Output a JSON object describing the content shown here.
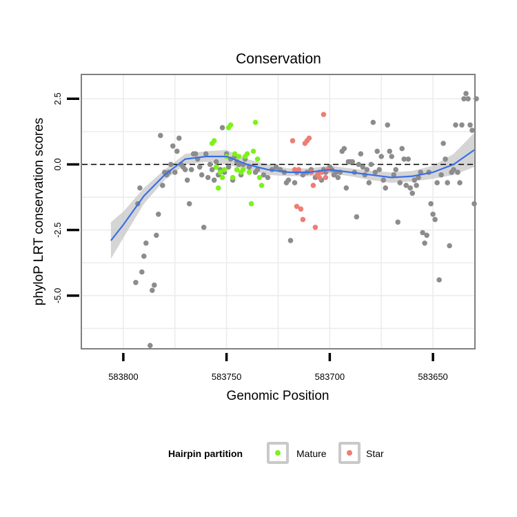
{
  "chart_data": {
    "type": "scatter",
    "title": "Conservation",
    "xlabel": "Genomic Position",
    "ylabel": "phyloP LRT conservation scores",
    "x_reversed": true,
    "xlim": [
      583820,
      583630
    ],
    "ylim": [
      -7.0,
      3.4
    ],
    "x_ticks": [
      583800,
      583750,
      583700,
      583650
    ],
    "y_ticks": [
      2.5,
      0.0,
      -2.5,
      -5.0
    ],
    "y_tick_labels": [
      "2.5",
      "0.0",
      "-2.5",
      "-5.0"
    ],
    "reference_line": {
      "y": 0,
      "style": "dashed"
    },
    "grid": true,
    "legend": {
      "title": "Hairpin partition",
      "placement": "bottom",
      "entries": [
        {
          "label": "Mature",
          "color": "#7cf21a"
        },
        {
          "label": "Star",
          "color": "#ee7d74"
        }
      ]
    },
    "colors": {
      "other": "#8c8c8c",
      "Mature": "#7cf21a",
      "Star": "#ee7d74",
      "smooth": "#3a6ee8",
      "band": "#c7c7c7"
    },
    "series": [
      {
        "group": "other",
        "points": [
          [
            583794,
            -4.5
          ],
          [
            583793,
            -1.5
          ],
          [
            583792,
            -0.9
          ],
          [
            583791,
            -4.1
          ],
          [
            583790,
            -3.5
          ],
          [
            583789,
            -3.0
          ],
          [
            583787,
            -6.9
          ],
          [
            583786,
            -4.8
          ],
          [
            583785,
            -4.6
          ],
          [
            583784,
            -2.7
          ],
          [
            583783,
            -1.9
          ],
          [
            583782,
            1.1
          ],
          [
            583781,
            -0.8
          ],
          [
            583780,
            -0.3
          ],
          [
            583779,
            -0.4
          ],
          [
            583778,
            -0.3
          ],
          [
            583777,
            0.0
          ],
          [
            583776,
            0.7
          ],
          [
            583775,
            -0.3
          ],
          [
            583774,
            0.5
          ],
          [
            583773,
            1.0
          ],
          [
            583772,
            0.0
          ],
          [
            583771,
            -0.1
          ],
          [
            583770,
            -0.2
          ],
          [
            583769,
            -0.6
          ],
          [
            583768,
            -1.5
          ],
          [
            583767,
            -0.2
          ],
          [
            583766,
            0.4
          ],
          [
            583765,
            0.4
          ],
          [
            583764,
            0.2
          ],
          [
            583763,
            -0.1
          ],
          [
            583762,
            -0.4
          ],
          [
            583761,
            -2.4
          ],
          [
            583760,
            0.4
          ],
          [
            583759,
            -0.5
          ],
          [
            583758,
            0.0
          ],
          [
            583757,
            -0.2
          ],
          [
            583756,
            -0.6
          ],
          [
            583755,
            0.1
          ],
          [
            583754,
            -0.4
          ],
          [
            583753,
            -0.2
          ],
          [
            583752,
            1.4
          ],
          [
            583751,
            -0.3
          ],
          [
            583750,
            0.4
          ],
          [
            583749,
            -0.1
          ],
          [
            583748,
            0.2
          ],
          [
            583747,
            -0.6
          ],
          [
            583746,
            0.3
          ],
          [
            583745,
            0.1
          ],
          [
            583744,
            0.0
          ],
          [
            583743,
            -0.4
          ],
          [
            583742,
            0.0
          ],
          [
            583741,
            0.2
          ],
          [
            583739,
            -0.1
          ],
          [
            583736,
            -0.3
          ],
          [
            583735,
            -0.2
          ],
          [
            583732,
            -0.4
          ],
          [
            583730,
            -0.5
          ],
          [
            583728,
            -0.2
          ],
          [
            583726,
            -0.1
          ],
          [
            583724,
            -0.2
          ],
          [
            583722,
            -0.3
          ],
          [
            583721,
            -0.7
          ],
          [
            583720,
            -0.6
          ],
          [
            583719,
            -2.9
          ],
          [
            583717,
            -0.7
          ],
          [
            583716,
            -0.3
          ],
          [
            583713,
            -0.4
          ],
          [
            583711,
            -0.3
          ],
          [
            583709,
            -0.2
          ],
          [
            583707,
            -0.5
          ],
          [
            583705,
            -0.3
          ],
          [
            583704,
            -0.6
          ],
          [
            583703,
            -0.2
          ],
          [
            583702,
            -0.3
          ],
          [
            583700,
            -0.1
          ],
          [
            583699,
            -0.2
          ],
          [
            583698,
            -0.4
          ],
          [
            583697,
            -0.3
          ],
          [
            583696,
            -0.5
          ],
          [
            583695,
            -0.3
          ],
          [
            583694,
            0.5
          ],
          [
            583693,
            0.6
          ],
          [
            583692,
            -0.9
          ],
          [
            583691,
            0.1
          ],
          [
            583690,
            0.1
          ],
          [
            583689,
            0.1
          ],
          [
            583688,
            -0.3
          ],
          [
            583687,
            -2.0
          ],
          [
            583686,
            0.0
          ],
          [
            583685,
            0.4
          ],
          [
            583684,
            -0.1
          ],
          [
            583683,
            -0.4
          ],
          [
            583682,
            -0.2
          ],
          [
            583681,
            -0.7
          ],
          [
            583680,
            0.0
          ],
          [
            583679,
            1.6
          ],
          [
            583678,
            -0.3
          ],
          [
            583677,
            0.5
          ],
          [
            583676,
            -0.2
          ],
          [
            583675,
            0.3
          ],
          [
            583674,
            -0.6
          ],
          [
            583673,
            -0.9
          ],
          [
            583672,
            1.5
          ],
          [
            583671,
            0.5
          ],
          [
            583670,
            0.3
          ],
          [
            583669,
            -0.4
          ],
          [
            583668,
            -0.2
          ],
          [
            583667,
            -2.2
          ],
          [
            583666,
            -0.7
          ],
          [
            583665,
            0.6
          ],
          [
            583664,
            0.2
          ],
          [
            583663,
            -0.8
          ],
          [
            583662,
            0.2
          ],
          [
            583661,
            -0.9
          ],
          [
            583660,
            -1.1
          ],
          [
            583659,
            -0.6
          ],
          [
            583658,
            -0.8
          ],
          [
            583657,
            -0.5
          ],
          [
            583656,
            -0.3
          ],
          [
            583655,
            -2.6
          ],
          [
            583654,
            -3.0
          ],
          [
            583653,
            -2.7
          ],
          [
            583652,
            -0.3
          ],
          [
            583651,
            -1.5
          ],
          [
            583650,
            -1.9
          ],
          [
            583649,
            -2.1
          ],
          [
            583648,
            -0.7
          ],
          [
            583647,
            -4.4
          ],
          [
            583646,
            -0.4
          ],
          [
            583645,
            0.8
          ],
          [
            583644,
            0.2
          ],
          [
            583643,
            -0.7
          ],
          [
            583642,
            -3.1
          ],
          [
            583641,
            -0.3
          ],
          [
            583640,
            -0.2
          ],
          [
            583639,
            1.5
          ],
          [
            583638,
            -0.3
          ],
          [
            583637,
            -0.7
          ],
          [
            583636,
            1.5
          ],
          [
            583635,
            2.5
          ],
          [
            583634,
            2.7
          ],
          [
            583633,
            2.5
          ],
          [
            583632,
            1.5
          ],
          [
            583631,
            1.3
          ],
          [
            583630,
            -1.5
          ],
          [
            583629,
            2.5
          ]
        ]
      },
      {
        "group": "Mature",
        "points": [
          [
            583757,
            0.8
          ],
          [
            583756,
            0.9
          ],
          [
            583755,
            -0.1
          ],
          [
            583754,
            -0.9
          ],
          [
            583753,
            -0.3
          ],
          [
            583752,
            -0.5
          ],
          [
            583751,
            -0.2
          ],
          [
            583750,
            0.3
          ],
          [
            583749,
            1.4
          ],
          [
            583748,
            1.5
          ],
          [
            583747,
            -0.5
          ],
          [
            583746,
            0.4
          ],
          [
            583745,
            -0.2
          ],
          [
            583744,
            0.3
          ],
          [
            583743,
            -0.3
          ],
          [
            583742,
            -0.2
          ],
          [
            583741,
            0.3
          ],
          [
            583740,
            0.4
          ],
          [
            583739,
            -0.3
          ],
          [
            583738,
            -1.5
          ],
          [
            583737,
            0.5
          ],
          [
            583736,
            1.6
          ],
          [
            583735,
            0.2
          ],
          [
            583734,
            -0.5
          ],
          [
            583733,
            -0.8
          ]
        ]
      },
      {
        "group": "Star",
        "points": [
          [
            583718,
            0.9
          ],
          [
            583717,
            -0.2
          ],
          [
            583716,
            -1.6
          ],
          [
            583715,
            -0.2
          ],
          [
            583714,
            -1.7
          ],
          [
            583713,
            -2.1
          ],
          [
            583712,
            0.8
          ],
          [
            583711,
            0.9
          ],
          [
            583710,
            1.0
          ],
          [
            583709,
            -0.3
          ],
          [
            583708,
            -0.8
          ],
          [
            583707,
            -2.4
          ],
          [
            583706,
            -0.4
          ],
          [
            583705,
            -0.5
          ],
          [
            583704,
            -0.3
          ],
          [
            583703,
            1.9
          ],
          [
            583702,
            -0.5
          ],
          [
            583701,
            -0.2
          ]
        ]
      }
    ],
    "smooth_line": {
      "x": [
        583806,
        583800,
        583790,
        583780,
        583770,
        583760,
        583750,
        583740,
        583730,
        583720,
        583710,
        583700,
        583690,
        583680,
        583670,
        583660,
        583650,
        583640,
        583630
      ],
      "y": [
        -2.9,
        -2.3,
        -1.2,
        -0.4,
        0.2,
        0.3,
        0.3,
        0.0,
        -0.2,
        -0.3,
        -0.3,
        -0.2,
        -0.3,
        -0.4,
        -0.5,
        -0.45,
        -0.3,
        0.0,
        0.55
      ],
      "ci_lower": [
        -3.6,
        -2.8,
        -1.5,
        -0.6,
        0.0,
        0.1,
        0.0,
        -0.2,
        -0.4,
        -0.45,
        -0.45,
        -0.35,
        -0.45,
        -0.6,
        -0.7,
        -0.65,
        -0.55,
        -0.4,
        -0.1
      ],
      "ci_upper": [
        -2.2,
        -1.8,
        -0.9,
        -0.2,
        0.4,
        0.5,
        0.55,
        0.2,
        0.0,
        -0.15,
        -0.15,
        -0.05,
        -0.15,
        -0.25,
        -0.3,
        -0.25,
        -0.05,
        0.4,
        1.2
      ]
    }
  }
}
